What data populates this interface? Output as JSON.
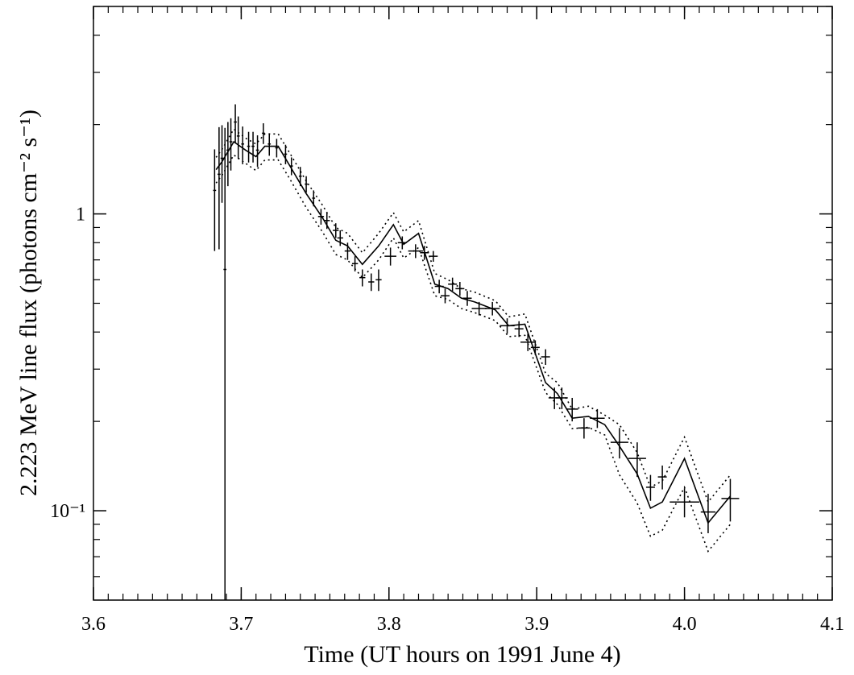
{
  "chart_data": {
    "type": "scatter",
    "xlabel": "Time (UT hours on 1991 June 4)",
    "ylabel": "2.223 MeV line flux (photons cm⁻² s⁻¹)",
    "xlim": [
      3.6,
      4.1
    ],
    "ylim": [
      0.05,
      5
    ],
    "log_y": true,
    "xticks": [
      3.6,
      3.7,
      3.8,
      3.9,
      {
        "value": 4.0,
        "label": "4.0"
      },
      4.1
    ],
    "xminor": 0.01,
    "yticks": [
      {
        "value": 0.1,
        "label": "10⁻¹"
      },
      1
    ],
    "yminor": [
      0.06,
      0.07,
      0.08,
      0.09,
      0.2,
      0.3,
      0.4,
      0.5,
      0.6,
      0.7,
      0.8,
      0.9,
      2,
      3,
      4,
      5
    ],
    "color": "#000000",
    "x": [
      3.682,
      3.685,
      3.687,
      3.689,
      3.691,
      3.693,
      3.696,
      3.698,
      3.701,
      3.705,
      3.708,
      3.711,
      3.715,
      3.719,
      3.724,
      3.73,
      3.734,
      3.74,
      3.744,
      3.749,
      3.754,
      3.758,
      3.764,
      3.767,
      3.772,
      3.777,
      3.782,
      3.788,
      3.793,
      3.801,
      3.809,
      3.818,
      3.824,
      3.83,
      3.834,
      3.838,
      3.843,
      3.848,
      3.853,
      3.861,
      3.87,
      3.88,
      3.888,
      3.894,
      3.899,
      3.906,
      3.912,
      3.917,
      3.924,
      3.932,
      3.941,
      3.956,
      3.968,
      3.977,
      3.985,
      4.0,
      4.016,
      4.031
    ],
    "values": [
      1.2,
      1.36,
      1.54,
      0.65,
      1.64,
      1.75,
      2.04,
      1.83,
      1.72,
      1.69,
      1.69,
      1.64,
      1.87,
      1.72,
      1.67,
      1.59,
      1.45,
      1.34,
      1.26,
      1.13,
      0.98,
      0.95,
      0.88,
      0.83,
      0.75,
      0.68,
      0.61,
      0.59,
      0.6,
      0.72,
      0.8,
      0.75,
      0.74,
      0.72,
      0.57,
      0.53,
      0.58,
      0.56,
      0.52,
      0.48,
      0.48,
      0.42,
      0.41,
      0.37,
      0.355,
      0.33,
      0.24,
      0.24,
      0.22,
      0.19,
      0.205,
      0.17,
      0.15,
      0.12,
      0.13,
      0.107,
      0.099,
      0.11
    ],
    "errors": [
      0.45,
      0.6,
      0.45,
      1.3,
      0.4,
      0.35,
      0.3,
      0.3,
      0.25,
      0.2,
      0.2,
      0.2,
      0.15,
      0.15,
      0.12,
      0.12,
      0.1,
      0.1,
      0.08,
      0.07,
      0.06,
      0.06,
      0.05,
      0.05,
      0.05,
      0.04,
      0.04,
      0.04,
      0.05,
      0.05,
      0.04,
      0.04,
      0.04,
      0.03,
      0.03,
      0.03,
      0.03,
      0.03,
      0.03,
      0.025,
      0.025,
      0.025,
      0.025,
      0.025,
      0.02,
      0.02,
      0.02,
      0.02,
      0.02,
      0.015,
      0.015,
      0.02,
      0.02,
      0.012,
      0.012,
      0.012,
      0.015,
      0.018
    ],
    "xerr": [
      0.001,
      0.001,
      0.001,
      0.001,
      0.001,
      0.001,
      0.001,
      0.001,
      0.001,
      0.001,
      0.001,
      0.001,
      0.001,
      0.001,
      0.001,
      0.001,
      0.001,
      0.001,
      0.001,
      0.001,
      0.002,
      0.002,
      0.002,
      0.002,
      0.002,
      0.002,
      0.002,
      0.002,
      0.002,
      0.004,
      0.003,
      0.005,
      0.003,
      0.003,
      0.003,
      0.003,
      0.003,
      0.003,
      0.003,
      0.005,
      0.005,
      0.005,
      0.003,
      0.005,
      0.003,
      0.003,
      0.004,
      0.004,
      0.004,
      0.004,
      0.005,
      0.006,
      0.006,
      0.003,
      0.003,
      0.01,
      0.005,
      0.006
    ],
    "model": {
      "x": [
        3.683,
        3.687,
        3.695,
        3.703,
        3.71,
        3.716,
        3.725,
        3.733,
        3.744,
        3.755,
        3.764,
        3.772,
        3.782,
        3.793,
        3.803,
        3.81,
        3.82,
        3.831,
        3.84,
        3.849,
        3.858,
        3.872,
        3.881,
        3.892,
        3.906,
        3.914,
        3.924,
        3.935,
        3.946,
        3.956,
        3.968,
        3.977,
        3.985,
        4.0,
        4.016,
        4.031
      ],
      "values": [
        1.41,
        1.5,
        1.75,
        1.64,
        1.56,
        1.69,
        1.69,
        1.45,
        1.17,
        0.97,
        0.815,
        0.78,
        0.676,
        0.78,
        0.92,
        0.79,
        0.86,
        0.58,
        0.56,
        0.52,
        0.505,
        0.475,
        0.42,
        0.425,
        0.27,
        0.248,
        0.205,
        0.208,
        0.195,
        0.165,
        0.133,
        0.102,
        0.107,
        0.15,
        0.091,
        0.112
      ],
      "upper": [
        1.55,
        1.65,
        1.93,
        1.8,
        1.72,
        1.86,
        1.86,
        1.6,
        1.29,
        1.07,
        0.9,
        0.86,
        0.74,
        0.86,
        1.01,
        0.87,
        0.95,
        0.63,
        0.6,
        0.56,
        0.545,
        0.51,
        0.45,
        0.46,
        0.29,
        0.27,
        0.22,
        0.225,
        0.21,
        0.195,
        0.157,
        0.12,
        0.126,
        0.177,
        0.107,
        0.132
      ],
      "lower": [
        1.27,
        1.35,
        1.58,
        1.48,
        1.4,
        1.52,
        1.52,
        1.31,
        1.05,
        0.87,
        0.73,
        0.7,
        0.61,
        0.7,
        0.83,
        0.71,
        0.77,
        0.53,
        0.515,
        0.48,
        0.465,
        0.437,
        0.386,
        0.39,
        0.25,
        0.228,
        0.189,
        0.191,
        0.18,
        0.132,
        0.106,
        0.082,
        0.086,
        0.12,
        0.073,
        0.09
      ]
    }
  }
}
